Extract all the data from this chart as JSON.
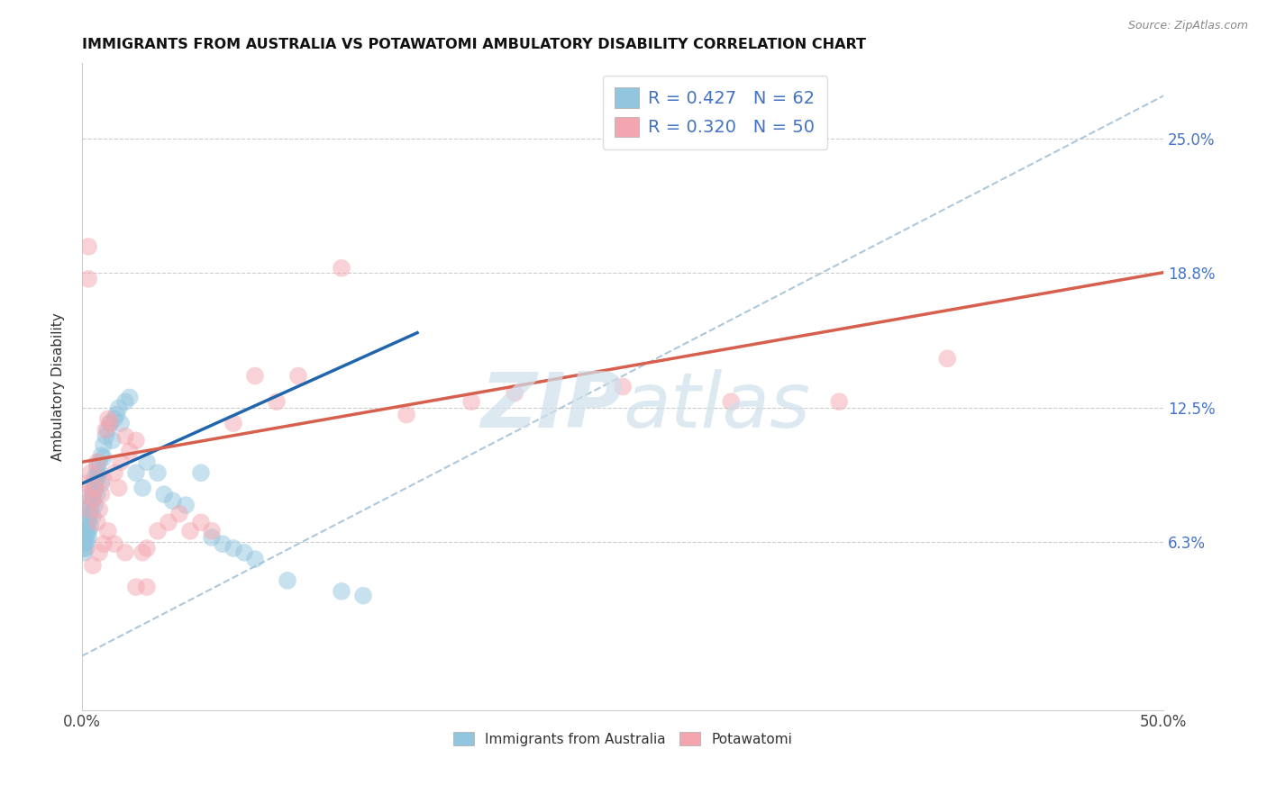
{
  "title": "IMMIGRANTS FROM AUSTRALIA VS POTAWATOMI AMBULATORY DISABILITY CORRELATION CHART",
  "source": "Source: ZipAtlas.com",
  "ylabel": "Ambulatory Disability",
  "ytick_labels": [
    "6.3%",
    "12.5%",
    "18.8%",
    "25.0%"
  ],
  "ytick_values": [
    0.063,
    0.125,
    0.188,
    0.25
  ],
  "legend_label1": "Immigrants from Australia",
  "legend_label2": "Potawatomi",
  "R1": 0.427,
  "N1": 62,
  "R2": 0.32,
  "N2": 50,
  "color_blue": "#92c5de",
  "color_pink": "#f4a6b0",
  "color_blue_line": "#2166ac",
  "color_pink_line": "#d6604d",
  "color_ref_line": "#adc8dc",
  "watermark_color": "#cfe0ec",
  "xmin": 0.0,
  "xmax": 0.5,
  "ymin": -0.015,
  "ymax": 0.285,
  "blue_x": [
    0.001,
    0.001,
    0.001,
    0.001,
    0.002,
    0.002,
    0.002,
    0.002,
    0.002,
    0.003,
    0.003,
    0.003,
    0.003,
    0.003,
    0.004,
    0.004,
    0.004,
    0.004,
    0.005,
    0.005,
    0.005,
    0.005,
    0.006,
    0.006,
    0.006,
    0.006,
    0.007,
    0.007,
    0.007,
    0.007,
    0.008,
    0.008,
    0.009,
    0.009,
    0.01,
    0.01,
    0.011,
    0.012,
    0.013,
    0.014,
    0.015,
    0.016,
    0.017,
    0.018,
    0.02,
    0.022,
    0.025,
    0.028,
    0.03,
    0.035,
    0.038,
    0.042,
    0.048,
    0.055,
    0.06,
    0.065,
    0.07,
    0.075,
    0.08,
    0.095,
    0.12,
    0.13
  ],
  "blue_y": [
    0.06,
    0.062,
    0.064,
    0.058,
    0.065,
    0.068,
    0.07,
    0.063,
    0.06,
    0.072,
    0.075,
    0.068,
    0.078,
    0.065,
    0.08,
    0.076,
    0.083,
    0.07,
    0.085,
    0.082,
    0.075,
    0.088,
    0.09,
    0.087,
    0.093,
    0.08,
    0.095,
    0.092,
    0.098,
    0.085,
    0.1,
    0.095,
    0.103,
    0.09,
    0.108,
    0.102,
    0.112,
    0.115,
    0.118,
    0.11,
    0.12,
    0.122,
    0.125,
    0.118,
    0.128,
    0.13,
    0.095,
    0.088,
    0.1,
    0.095,
    0.085,
    0.082,
    0.08,
    0.095,
    0.065,
    0.062,
    0.06,
    0.058,
    0.055,
    0.045,
    0.04,
    0.038
  ],
  "pink_x": [
    0.001,
    0.002,
    0.003,
    0.003,
    0.004,
    0.005,
    0.006,
    0.007,
    0.007,
    0.008,
    0.009,
    0.01,
    0.011,
    0.012,
    0.013,
    0.015,
    0.017,
    0.018,
    0.02,
    0.022,
    0.025,
    0.028,
    0.03,
    0.035,
    0.04,
    0.045,
    0.05,
    0.055,
    0.06,
    0.07,
    0.08,
    0.09,
    0.1,
    0.12,
    0.15,
    0.18,
    0.2,
    0.25,
    0.3,
    0.35,
    0.003,
    0.005,
    0.008,
    0.01,
    0.012,
    0.015,
    0.02,
    0.025,
    0.03,
    0.4
  ],
  "pink_y": [
    0.09,
    0.085,
    0.2,
    0.078,
    0.095,
    0.083,
    0.088,
    0.072,
    0.1,
    0.078,
    0.085,
    0.092,
    0.115,
    0.12,
    0.118,
    0.095,
    0.088,
    0.1,
    0.112,
    0.105,
    0.11,
    0.058,
    0.06,
    0.068,
    0.072,
    0.076,
    0.068,
    0.072,
    0.068,
    0.118,
    0.14,
    0.128,
    0.14,
    0.19,
    0.122,
    0.128,
    0.132,
    0.135,
    0.128,
    0.128,
    0.185,
    0.052,
    0.058,
    0.062,
    0.068,
    0.062,
    0.058,
    0.042,
    0.042,
    0.148
  ],
  "blue_trend_x": [
    0.0,
    0.155
  ],
  "blue_trend_y": [
    0.09,
    0.16
  ],
  "pink_trend_x": [
    0.0,
    0.5
  ],
  "pink_trend_y": [
    0.1,
    0.188
  ],
  "ref_line_x": [
    0.0,
    0.5
  ],
  "ref_line_y": [
    0.01,
    0.27
  ]
}
